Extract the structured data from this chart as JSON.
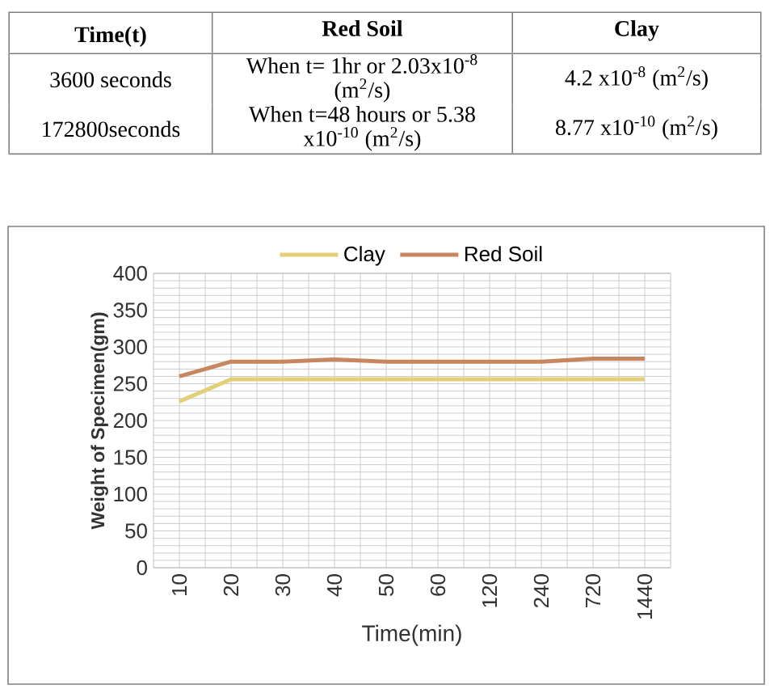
{
  "chart_data": [
    {
      "type": "other",
      "annotations": [
        "**Time(t)**",
        "**Red Soil**",
        "**Clay**",
        "3600 seconds",
        "When t= 1hr or 2.03x10$^{-8}$ (m$^{2}$/s)",
        "4.2 x10$^{-8}$ (m$^{2}$/s)",
        "172800seconds",
        "When t=48 hours or 5.38 x10$^{-10}$ (m$^{2}$/s)",
        "8.77 x10$^{-10}$ (m$^{2}$/s)"
      ]
    },
    {
      "type": "line",
      "categories": [
        "10",
        "20",
        "30",
        "40",
        "50",
        "60",
        "120",
        "240",
        "720",
        "1440"
      ],
      "xlabel": "Time(min)",
      "ylabel": "Weight of Specimen(gm)",
      "ylim": [
        0,
        400
      ],
      "yticks": [
        0,
        50,
        100,
        150,
        200,
        250,
        300,
        350,
        400
      ],
      "grid": true,
      "legend": "top",
      "series": [
        {
          "name": "Clay",
          "color": "#e3cf76",
          "values": [
            226,
            256,
            256,
            256,
            256,
            256,
            256,
            256,
            256,
            256
          ]
        },
        {
          "name": "Red Soil",
          "color": "#c8865f",
          "values": [
            260,
            280,
            280,
            283,
            280,
            280,
            280,
            280,
            284,
            284
          ]
        }
      ]
    }
  ]
}
